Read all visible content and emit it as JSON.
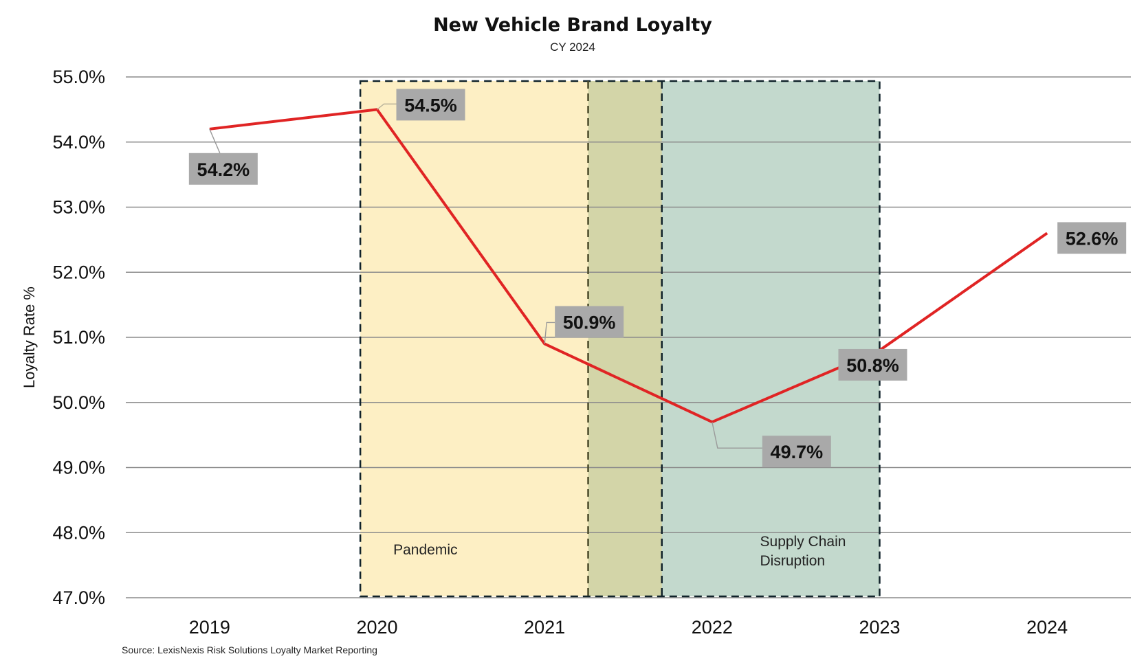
{
  "chart_data": {
    "type": "line",
    "title": "New Vehicle Brand Loyalty",
    "subtitle": "CY 2024",
    "xlabel": "",
    "ylabel": "Loyalty Rate %",
    "categories": [
      "2019",
      "2020",
      "2021",
      "2022",
      "2023",
      "2024"
    ],
    "series": [
      {
        "name": "Loyalty Rate",
        "values": [
          54.2,
          54.5,
          50.9,
          49.7,
          50.8,
          52.6
        ],
        "data_labels": [
          "54.2%",
          "54.5%",
          "50.9%",
          "49.7%",
          "50.8%",
          "52.6%"
        ],
        "color": "#e02424"
      }
    ],
    "ylim": [
      47.0,
      55.0
    ],
    "yticks": [
      55.0,
      54.0,
      53.0,
      52.0,
      51.0,
      50.0,
      49.0,
      48.0,
      47.0
    ],
    "ytick_labels": [
      "55.0%",
      "54.0%",
      "53.0%",
      "52.0%",
      "51.0%",
      "50.0%",
      "49.0%",
      "48.0%",
      "47.0%"
    ],
    "grid": true,
    "annotations": [
      {
        "label": [
          "Pandemic"
        ],
        "x_start": 2019.9,
        "x_end": 2021.7,
        "color": "#fdefc4"
      },
      {
        "label": [
          "Supply Chain",
          "Disruption"
        ],
        "x_start": 2021.26,
        "x_end": 2023.0,
        "color": "#c3d9cd"
      }
    ],
    "overlap_color": "#d3d5a8",
    "label_box_color": "#a9a9a9",
    "source": "Source: LexisNexis Risk Solutions Loyalty Market Reporting"
  }
}
